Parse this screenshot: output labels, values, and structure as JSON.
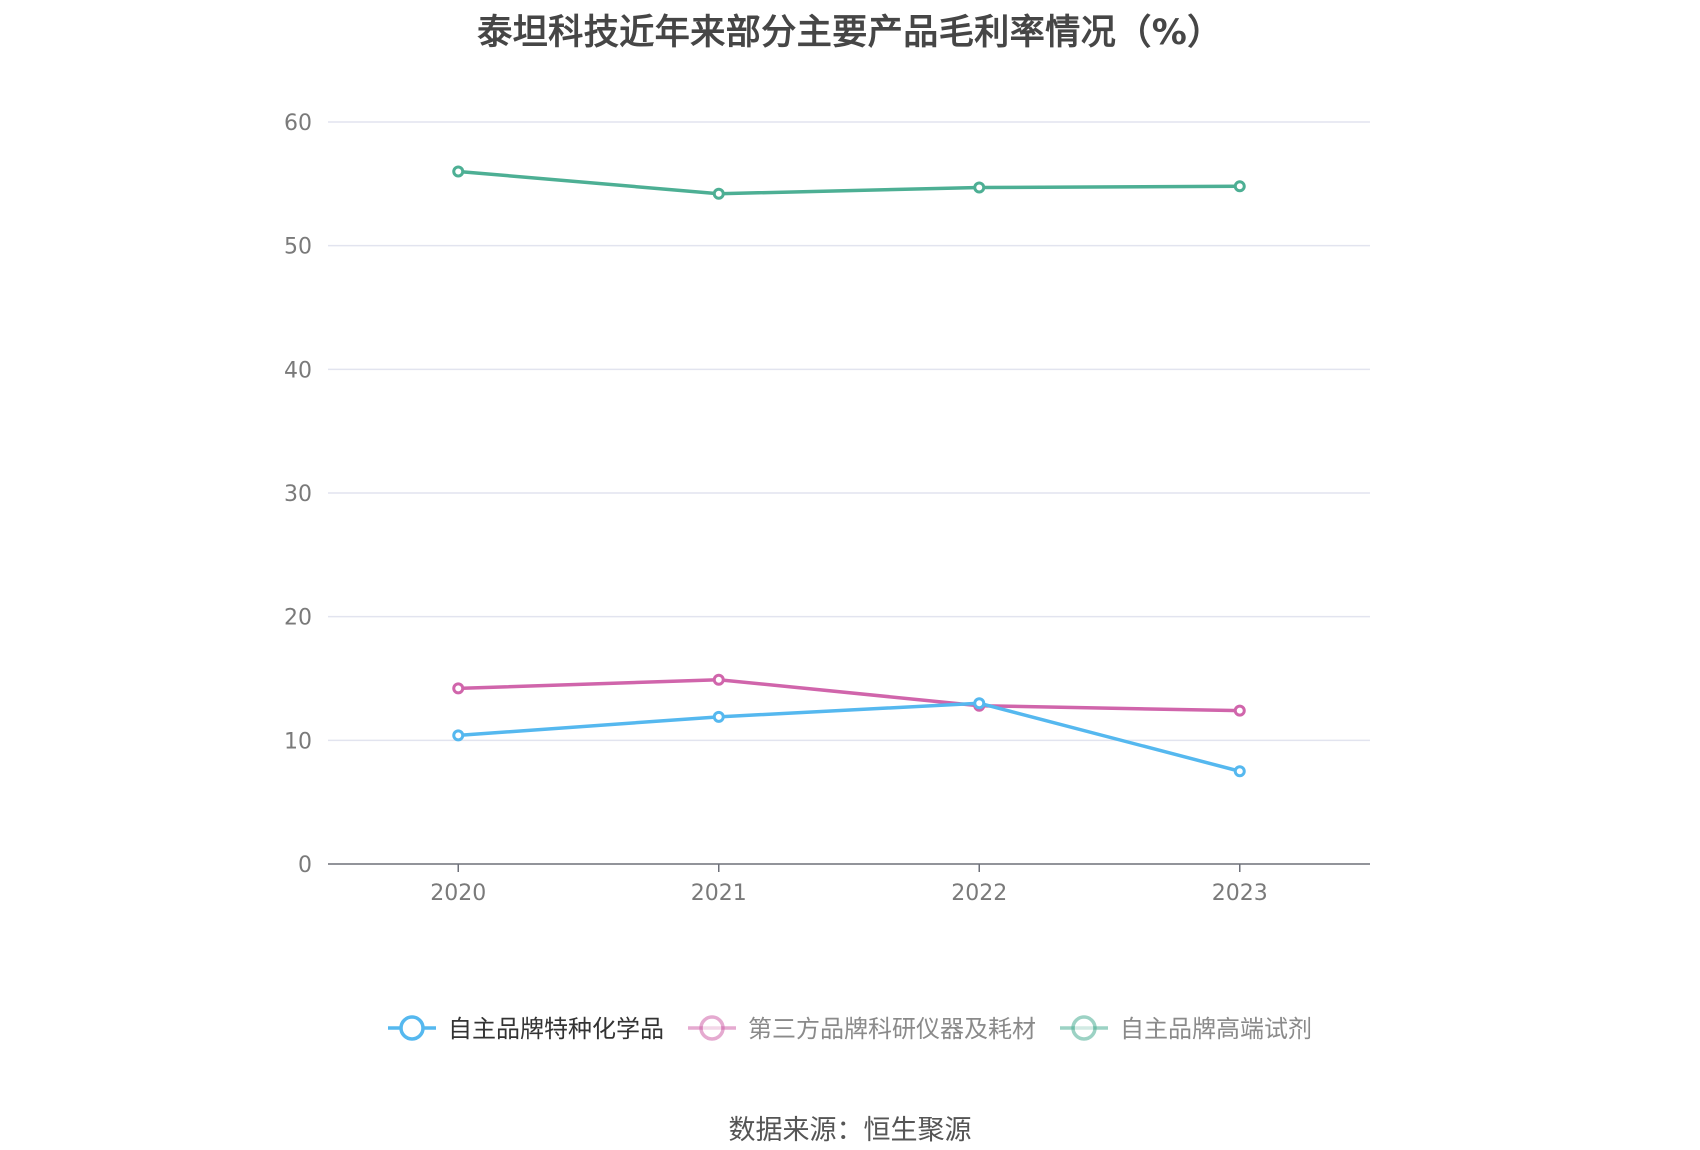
{
  "chart_data": {
    "type": "line",
    "title": "泰坦科技近年来部分主要产品毛利率情况（%）",
    "categories": [
      "2020",
      "2021",
      "2022",
      "2023"
    ],
    "ylim": [
      0,
      60
    ],
    "yticks": [
      0,
      10,
      20,
      30,
      40,
      50,
      60
    ],
    "grid": true,
    "legend_position": "bottom",
    "series": [
      {
        "name": "自主品牌特种化学品",
        "color": "#55b8ef",
        "values": [
          10.4,
          11.9,
          13.0,
          7.5
        ]
      },
      {
        "name": "第三方品牌科研仪器及耗材",
        "color": "#d065ab",
        "values": [
          14.2,
          14.9,
          12.8,
          12.4
        ]
      },
      {
        "name": "自主品牌高端试剂",
        "color": "#4daf94",
        "values": [
          56.0,
          54.2,
          54.7,
          54.8
        ]
      }
    ]
  },
  "source": "数据来源：恒生聚源"
}
